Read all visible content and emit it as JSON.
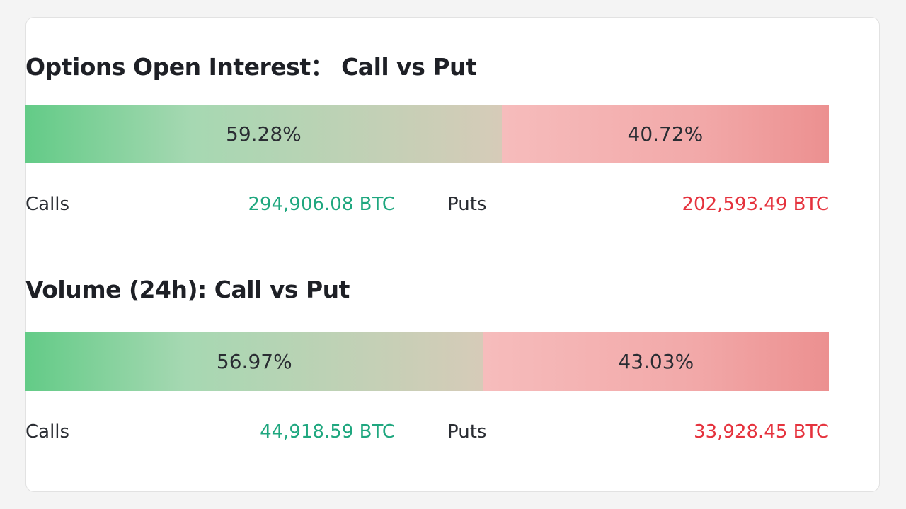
{
  "sections": [
    {
      "title": "Options Open Interest： Call vs Put",
      "call": {
        "value": 59.28,
        "label": "59.28%"
      },
      "put": {
        "value": 40.72,
        "label": "40.72%"
      },
      "calls_label": "Calls",
      "calls_value": "294,906.08 BTC",
      "puts_label": "Puts",
      "puts_value": "202,593.49 BTC"
    },
    {
      "title": "Volume (24h): Call vs Put",
      "call": {
        "value": 56.97,
        "label": "56.97%"
      },
      "put": {
        "value": 43.03,
        "label": "43.03%"
      },
      "calls_label": "Calls",
      "calls_value": "44,918.59 BTC",
      "puts_label": "Puts",
      "puts_value": "33,928.45 BTC"
    }
  ]
}
